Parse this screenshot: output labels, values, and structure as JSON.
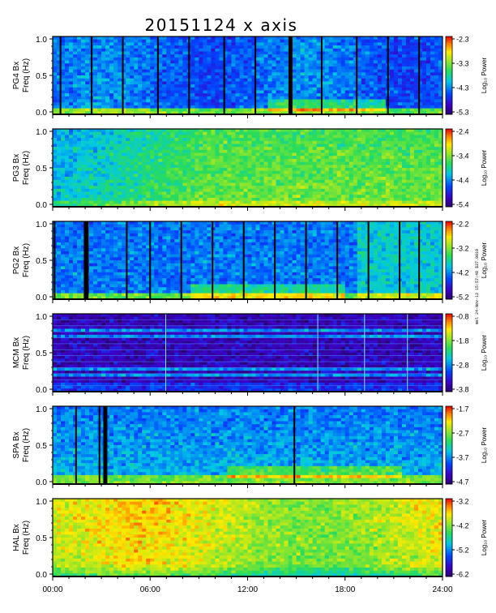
{
  "chart_data": {
    "type": "heatmap",
    "title": "20151124 x axis",
    "x_axis": {
      "range": [
        "00:00",
        "24:00"
      ],
      "ticks": [
        "00:00",
        "06:00",
        "12:00",
        "18:00",
        "24:00"
      ]
    },
    "colorbar_label": "Log₁₀ Power",
    "panels": [
      {
        "station": "PG4 Bx",
        "ylabel": "Freq (Hz)",
        "ylim": [
          0.0,
          1.0
        ],
        "yticks": [
          "0.0",
          "0.5",
          "1.0"
        ],
        "cbar_range": [
          -5.3,
          -2.3
        ],
        "cbar_ticks": [
          "-2.3",
          "-3.3",
          "-4.3",
          "-5.3"
        ]
      },
      {
        "station": "PG3 Bx",
        "ylabel": "Freq (Hz)",
        "ylim": [
          0.0,
          1.0
        ],
        "yticks": [
          "0.0",
          "0.5",
          "1.0"
        ],
        "cbar_range": [
          -5.4,
          -2.4
        ],
        "cbar_ticks": [
          "-2.4",
          "-3.4",
          "-4.4",
          "-5.4"
        ]
      },
      {
        "station": "PG2 Bx",
        "ylabel": "Freq (Hz)",
        "ylim": [
          0.0,
          1.0
        ],
        "yticks": [
          "0.0",
          "0.5",
          "1.0"
        ],
        "cbar_range": [
          -5.2,
          -2.2
        ],
        "cbar_ticks": [
          "-2.2",
          "-3.2",
          "-4.2",
          "-5.2"
        ]
      },
      {
        "station": "MCM Bx",
        "ylabel": "Freq (Hz)",
        "ylim": [
          0.0,
          1.0
        ],
        "yticks": [
          "0.0",
          "0.5",
          "1.0"
        ],
        "cbar_range": [
          -3.8,
          -0.8
        ],
        "cbar_ticks": [
          "-0.8",
          "-1.8",
          "-2.8",
          "-3.8"
        ]
      },
      {
        "station": "SPA Bx",
        "ylabel": "Freq (Hz)",
        "ylim": [
          0.0,
          1.0
        ],
        "yticks": [
          "0.0",
          "0.5",
          "1.0"
        ],
        "cbar_range": [
          -4.7,
          -1.7
        ],
        "cbar_ticks": [
          "-1.7",
          "-2.7",
          "-3.7",
          "-4.7"
        ]
      },
      {
        "station": "HAL Bx",
        "ylabel": "Freq (Hz)",
        "ylim": [
          0.0,
          1.0
        ],
        "yticks": [
          "0.0",
          "0.5",
          "1.0"
        ],
        "cbar_range": [
          -6.2,
          -3.2
        ],
        "cbar_ticks": [
          "-3.2",
          "-4.2",
          "-5.2",
          "-6.2"
        ]
      }
    ],
    "stamp": "mel  24-Nov-13  15:57:48  $37.0010"
  }
}
